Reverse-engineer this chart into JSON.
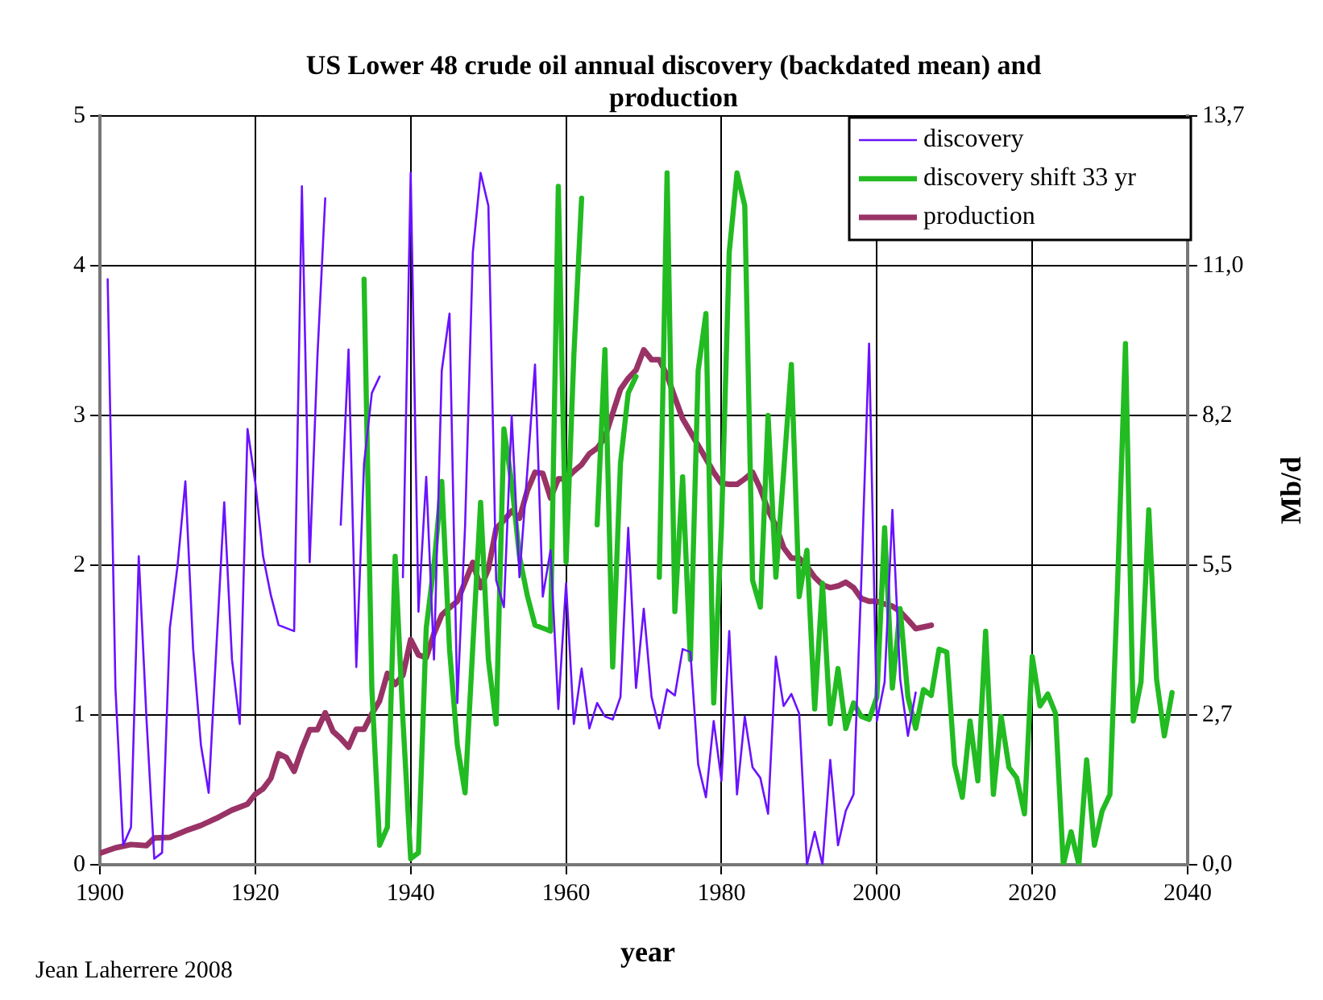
{
  "chart_data": {
    "type": "line",
    "title": "US Lower 48 crude oil annual discovery (backdated mean) and production",
    "xlabel": "year",
    "y2label": "Mb/d",
    "annotations": [
      "Jean Laherrere 2008"
    ],
    "xlim": [
      1900,
      2040
    ],
    "xticks": [
      1900,
      1920,
      1940,
      1960,
      1980,
      2000,
      2020,
      2040
    ],
    "ylim": [
      0,
      5
    ],
    "yticks": [
      0,
      1,
      2,
      3,
      4,
      5
    ],
    "y2lim": [
      0,
      13.7
    ],
    "y2ticks": [
      {
        "value": 0,
        "label": "0,0"
      },
      {
        "value": 2.74,
        "label": "2,7"
      },
      {
        "value": 5.48,
        "label": "5,5"
      },
      {
        "value": 8.22,
        "label": "8,2"
      },
      {
        "value": 10.96,
        "label": "11,0"
      },
      {
        "value": 13.7,
        "label": "13,7"
      }
    ],
    "grid": true,
    "legend": "top right",
    "marker": "none",
    "line_style": "solid",
    "series": [
      {
        "name": "discovery",
        "color": "#6a12ff",
        "x": [
          1901,
          1902,
          1903,
          1904,
          1905,
          1906,
          1907,
          1908,
          1909,
          1910,
          1911,
          1912,
          1913,
          1914,
          1915,
          1916,
          1917,
          1918,
          1919,
          1920,
          1921,
          1922,
          1923,
          1924,
          1925,
          1926,
          1927,
          1928,
          1929,
          1930,
          1931,
          1932,
          1933,
          1934,
          1935,
          1936,
          1937,
          1938,
          1939,
          1940,
          1941,
          1942,
          1943,
          1944,
          1945,
          1946,
          1947,
          1948,
          1949,
          1950,
          1951,
          1952,
          1953,
          1954,
          1955,
          1956,
          1957,
          1958,
          1959,
          1960,
          1961,
          1962,
          1963,
          1964,
          1965,
          1966,
          1967,
          1968,
          1969,
          1970,
          1971,
          1972,
          1973,
          1974,
          1975,
          1976,
          1977,
          1978,
          1979,
          1980,
          1981,
          1982,
          1983,
          1984,
          1985,
          1986,
          1987,
          1988,
          1989,
          1990,
          1991,
          1992,
          1993,
          1994,
          1995,
          1996,
          1997,
          1998,
          1999,
          2000,
          2001,
          2002,
          2003,
          2004,
          2005
        ],
        "values": [
          3.91,
          1.18,
          0.13,
          0.25,
          2.06,
          0.97,
          0.04,
          0.08,
          1.58,
          2.0,
          2.56,
          1.44,
          0.8,
          0.48,
          1.46,
          2.42,
          1.37,
          0.94,
          2.91,
          2.55,
          2.06,
          1.8,
          1.6,
          1.58,
          1.56,
          4.53,
          2.02,
          3.4,
          4.45,
          null,
          2.27,
          3.44,
          1.32,
          2.68,
          3.15,
          3.26,
          null,
          null,
          1.92,
          4.62,
          1.69,
          2.59,
          1.37,
          3.3,
          3.68,
          1.08,
          2.26,
          4.09,
          4.62,
          4.4,
          1.9,
          1.72,
          3.0,
          1.92,
          2.62,
          3.34,
          1.79,
          2.1,
          1.04,
          1.88,
          0.94,
          1.31,
          0.91,
          1.08,
          0.99,
          0.97,
          1.12,
          2.25,
          1.18,
          1.71,
          1.12,
          0.91,
          1.17,
          1.13,
          1.44,
          1.42,
          0.67,
          0.45,
          0.96,
          0.56,
          1.56,
          0.47,
          0.99,
          0.65,
          0.58,
          0.34,
          1.39,
          1.06,
          1.14,
          1.01,
          0,
          0.22,
          0,
          0.7,
          0.13,
          0.36,
          0.47,
          1.9,
          3.48,
          0.96,
          1.22,
          2.37,
          1.24,
          0.86,
          1.15
        ]
      },
      {
        "name": "discovery shift 33 yr",
        "color": "#22bb22",
        "x": [
          1934,
          1935,
          1936,
          1937,
          1938,
          1939,
          1940,
          1941,
          1942,
          1943,
          1944,
          1945,
          1946,
          1947,
          1948,
          1949,
          1950,
          1951,
          1952,
          1953,
          1954,
          1955,
          1956,
          1957,
          1958,
          1959,
          1960,
          1961,
          1962,
          1963,
          1964,
          1965,
          1966,
          1967,
          1968,
          1969,
          1970,
          1971,
          1972,
          1973,
          1974,
          1975,
          1976,
          1977,
          1978,
          1979,
          1980,
          1981,
          1982,
          1983,
          1984,
          1985,
          1986,
          1987,
          1988,
          1989,
          1990,
          1991,
          1992,
          1993,
          1994,
          1995,
          1996,
          1997,
          1998,
          1999,
          2000,
          2001,
          2002,
          2003,
          2004,
          2005,
          2006,
          2007,
          2008,
          2009,
          2010,
          2011,
          2012,
          2013,
          2014,
          2015,
          2016,
          2017,
          2018,
          2019,
          2020,
          2021,
          2022,
          2023,
          2024,
          2025,
          2026,
          2027,
          2028,
          2029,
          2030,
          2031,
          2032,
          2033,
          2034,
          2035,
          2036,
          2037,
          2038
        ],
        "values": [
          3.91,
          1.18,
          0.13,
          0.25,
          2.06,
          0.97,
          0.04,
          0.08,
          1.58,
          2.0,
          2.56,
          1.44,
          0.8,
          0.48,
          1.46,
          2.42,
          1.37,
          0.94,
          2.91,
          2.55,
          2.06,
          1.8,
          1.6,
          1.58,
          1.56,
          4.53,
          2.02,
          3.4,
          4.45,
          null,
          2.27,
          3.44,
          1.32,
          2.68,
          3.15,
          3.26,
          null,
          null,
          1.92,
          4.62,
          1.69,
          2.59,
          1.37,
          3.3,
          3.68,
          1.08,
          2.26,
          4.09,
          4.62,
          4.4,
          1.9,
          1.72,
          3.0,
          1.92,
          2.62,
          3.34,
          1.79,
          2.1,
          1.04,
          1.88,
          0.94,
          1.31,
          0.91,
          1.08,
          0.99,
          0.97,
          1.12,
          2.25,
          1.18,
          1.71,
          1.12,
          0.91,
          1.17,
          1.13,
          1.44,
          1.42,
          0.67,
          0.45,
          0.96,
          0.56,
          1.56,
          0.47,
          0.99,
          0.65,
          0.58,
          0.34,
          1.39,
          1.06,
          1.14,
          1.01,
          0,
          0.22,
          0,
          0.7,
          0.13,
          0.36,
          0.47,
          1.9,
          3.48,
          0.96,
          1.22,
          2.37,
          1.24,
          0.86,
          1.15
        ]
      },
      {
        "name": "production",
        "color": "#993366",
        "axis": "y2",
        "x": [
          1900,
          1902,
          1904,
          1906,
          1907,
          1909,
          1911,
          1913,
          1915,
          1917,
          1919,
          1920,
          1921,
          1922,
          1923,
          1924,
          1925,
          1926,
          1927,
          1928,
          1929,
          1930,
          1931,
          1932,
          1933,
          1934,
          1935,
          1936,
          1937,
          1938,
          1939,
          1940,
          1941,
          1942,
          1943,
          1944,
          1945,
          1946,
          1947,
          1948,
          1949,
          1950,
          1951,
          1952,
          1953,
          1954,
          1955,
          1956,
          1957,
          1958,
          1959,
          1960,
          1961,
          1962,
          1963,
          1964,
          1965,
          1966,
          1967,
          1968,
          1969,
          1970,
          1971,
          1972,
          1973,
          1974,
          1975,
          1976,
          1977,
          1978,
          1979,
          1980,
          1981,
          1982,
          1983,
          1984,
          1985,
          1986,
          1987,
          1988,
          1989,
          1990,
          1991,
          1992,
          1993,
          1994,
          1995,
          1996,
          1997,
          1998,
          1999,
          2000,
          2001,
          2002,
          2003,
          2004,
          2005,
          2006,
          2007
        ],
        "values": [
          0.21,
          0.31,
          0.37,
          0.35,
          0.49,
          0.5,
          0.62,
          0.72,
          0.85,
          1.0,
          1.11,
          1.29,
          1.39,
          1.58,
          2.03,
          1.96,
          1.71,
          2.12,
          2.47,
          2.47,
          2.78,
          2.44,
          2.31,
          2.15,
          2.48,
          2.48,
          2.76,
          3.0,
          3.5,
          3.3,
          3.47,
          4.12,
          3.84,
          3.79,
          4.23,
          4.57,
          4.7,
          4.82,
          5.17,
          5.53,
          5.07,
          5.41,
          6.15,
          6.3,
          6.47,
          6.34,
          6.84,
          7.18,
          7.16,
          6.71,
          7.06,
          7.06,
          7.2,
          7.32,
          7.52,
          7.62,
          7.82,
          8.26,
          8.7,
          8.9,
          9.05,
          9.42,
          9.24,
          9.24,
          8.95,
          8.55,
          8.16,
          7.92,
          7.67,
          7.43,
          7.18,
          6.98,
          6.96,
          6.96,
          7.06,
          7.18,
          6.88,
          6.49,
          6.2,
          5.8,
          5.61,
          5.61,
          5.46,
          5.26,
          5.12,
          5.07,
          5.1,
          5.17,
          5.07,
          4.87,
          4.82,
          4.82,
          4.77,
          4.73,
          4.63,
          4.48,
          4.32,
          4.35,
          4.38
        ]
      }
    ]
  }
}
